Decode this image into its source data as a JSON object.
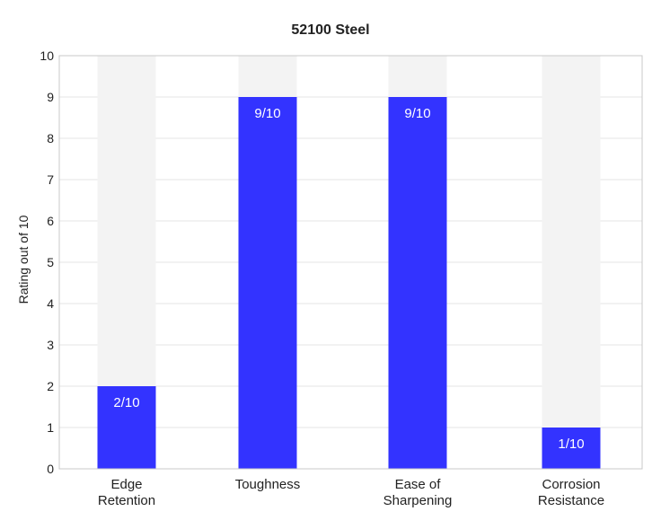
{
  "chart_data": {
    "type": "bar",
    "title": "52100 Steel",
    "xlabel": "",
    "ylabel": "Rating out of 10",
    "ylim": [
      0,
      10
    ],
    "yticks": [
      0,
      1,
      2,
      3,
      4,
      5,
      6,
      7,
      8,
      9,
      10
    ],
    "categories": [
      [
        "Edge",
        "Retention"
      ],
      [
        "Toughness"
      ],
      [
        "Ease of",
        "Sharpening"
      ],
      [
        "Corrosion",
        "Resistance"
      ]
    ],
    "values": [
      2,
      9,
      9,
      1
    ],
    "max": 10,
    "data_labels": [
      "2/10",
      "9/10",
      "9/10",
      "1/10"
    ],
    "grid": true,
    "legend": "none",
    "colors": {
      "bar": "#3333ff",
      "track": "#f3f3f3",
      "grid": "#e6e6e6",
      "frame": "#c8c8c8",
      "text": "#222222"
    }
  }
}
